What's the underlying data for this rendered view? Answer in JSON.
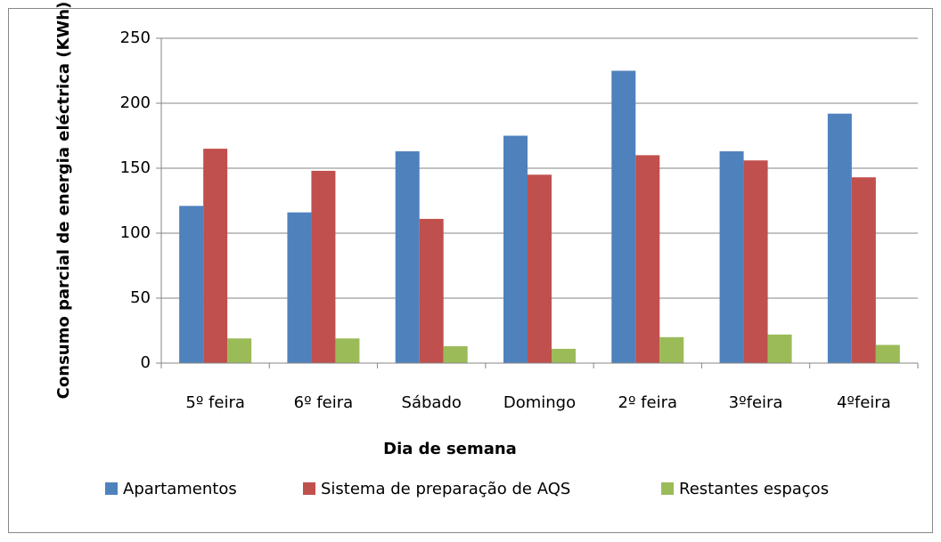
{
  "chart_data": {
    "type": "bar",
    "y_label": "Consumo parcial de energia eléctrica (KWh)",
    "x_label": "Dia de semana",
    "categories": [
      "5º feira",
      "6º feira",
      "Sábado",
      "Domingo",
      "2º feira",
      "3ºfeira",
      "4ºfeira"
    ],
    "series": [
      {
        "name": "Apartamentos",
        "color": "#4f81bd",
        "values": [
          121,
          116,
          163,
          175,
          225,
          163,
          192
        ]
      },
      {
        "name": "Sistema de preparação de AQS",
        "color": "#c0504d",
        "values": [
          165,
          148,
          111,
          145,
          160,
          156,
          143
        ]
      },
      {
        "name": "Restantes espaços",
        "color": "#9bbb59",
        "values": [
          19,
          19,
          13,
          11,
          20,
          22,
          14
        ]
      }
    ],
    "ylim": [
      0,
      250
    ],
    "yticks": [
      0,
      50,
      100,
      150,
      200,
      250
    ],
    "grid": true,
    "legend": "bottom"
  }
}
